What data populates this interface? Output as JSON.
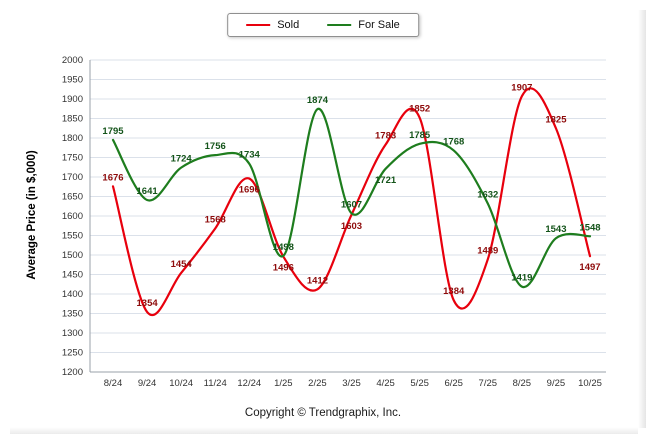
{
  "footer": "Copyright © Trendgraphix, Inc.",
  "chart_data": {
    "type": "line",
    "title": "",
    "xlabel": "",
    "ylabel": "Average Price (in $,000)",
    "categories": [
      "8/24",
      "9/24",
      "10/24",
      "11/24",
      "12/24",
      "1/25",
      "2/25",
      "3/25",
      "4/25",
      "5/25",
      "6/25",
      "7/25",
      "8/25",
      "9/25",
      "10/25"
    ],
    "series": [
      {
        "name": "Sold",
        "color": "#e8000d",
        "label_color": "#8e0b0b",
        "values": [
          1676,
          1354,
          1454,
          1568,
          1696,
          1496,
          1412,
          1603,
          1783,
          1852,
          1384,
          1489,
          1907,
          1825,
          1497
        ]
      },
      {
        "name": "For Sale",
        "color": "#1e7d1e",
        "label_color": "#14541a",
        "values": [
          1795,
          1641,
          1724,
          1756,
          1734,
          1498,
          1874,
          1607,
          1721,
          1785,
          1768,
          1632,
          1419,
          1543,
          1548
        ]
      }
    ],
    "ylim": [
      1200,
      2000
    ],
    "ytick_step": 50,
    "grid": true,
    "legend_position": "top",
    "show_point_labels": true,
    "grid_color": "#dbe1ea",
    "axis_color": "#9aa0a8",
    "tick_label_color": "#333333"
  }
}
